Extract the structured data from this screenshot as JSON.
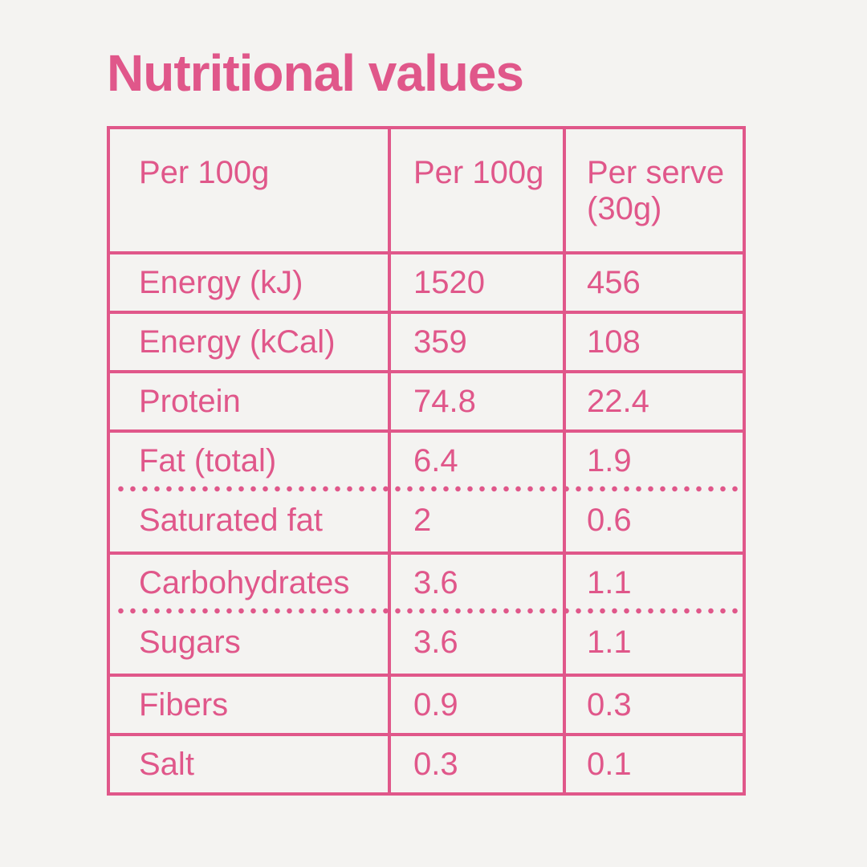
{
  "page": {
    "background_color": "#f4f3f1",
    "accent_color": "#e0578a"
  },
  "title": "Nutritional values",
  "table": {
    "header": {
      "col1": "Per 100g",
      "col2": "Per 100g",
      "col3": "Per serve (30g)"
    },
    "rows": [
      {
        "label": "Energy (kJ)",
        "per_100g": "1520",
        "per_serve": "456"
      },
      {
        "label": "Energy (kCal)",
        "per_100g": "359",
        "per_serve": "108"
      },
      {
        "label": "Protein",
        "per_100g": "74.8",
        "per_serve": "22.4"
      },
      {
        "label": "Fat (total)",
        "per_100g": "6.4",
        "per_serve": "1.9"
      },
      {
        "label": "Saturated fat",
        "per_100g": "2",
        "per_serve": "0.6",
        "separator_above": "dotted"
      },
      {
        "label": "Carbohydrates",
        "per_100g": "3.6",
        "per_serve": "1.1"
      },
      {
        "label": "Sugars",
        "per_100g": "3.6",
        "per_serve": "1.1",
        "separator_above": "dotted"
      },
      {
        "label": "Fibers",
        "per_100g": "0.9",
        "per_serve": "0.3"
      },
      {
        "label": "Salt",
        "per_100g": "0.3",
        "per_serve": "0.1"
      }
    ]
  }
}
